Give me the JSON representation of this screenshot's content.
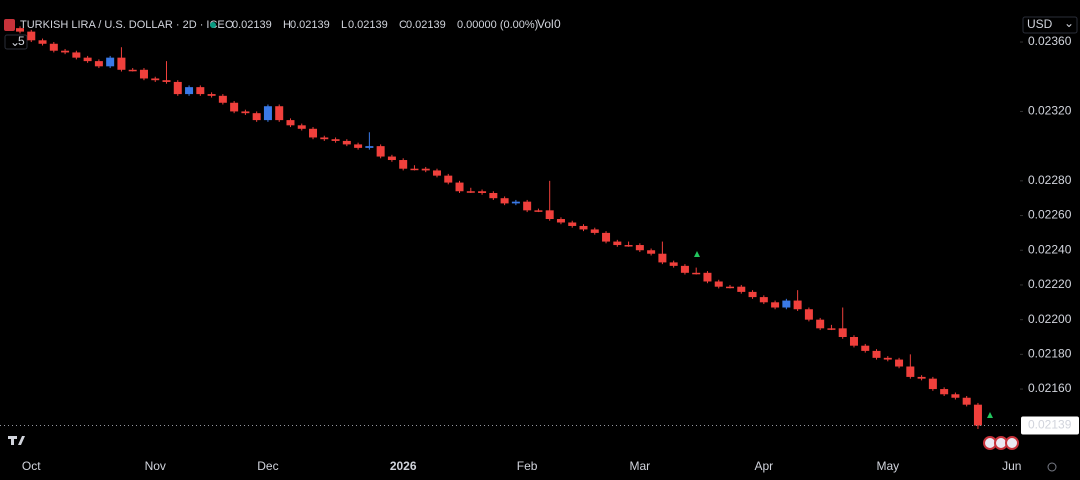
{
  "chart_data": {
    "type": "candlestick",
    "title": "TURKISH LIRA / U.S. DOLLAR · 2D · ICE",
    "interval_badge": "5",
    "currency": "USD",
    "ohlc_legend": {
      "labels": [
        "O",
        "H",
        "L",
        "C"
      ],
      "values": [
        0.02139,
        0.02139,
        0.02139,
        0.02139
      ],
      "change": "0.00000 (0.00%)",
      "volume_label": "Vol",
      "volume": 0
    },
    "last_price": 0.02139,
    "up_color": "#3a7ae8",
    "down_color": "#f0403c",
    "categories": [
      null,
      "Oct",
      null,
      null,
      null,
      null,
      null,
      null,
      null,
      null,
      null,
      null,
      "Nov",
      null,
      null,
      null,
      null,
      null,
      null,
      null,
      null,
      null,
      "Dec",
      null,
      null,
      null,
      null,
      null,
      null,
      null,
      null,
      null,
      null,
      null,
      "2026",
      null,
      null,
      null,
      null,
      null,
      null,
      null,
      null,
      null,
      null,
      "Feb",
      null,
      null,
      null,
      null,
      null,
      null,
      null,
      null,
      null,
      "Mar",
      null,
      null,
      null,
      null,
      null,
      null,
      null,
      null,
      null,
      null,
      "Apr",
      null,
      null,
      null,
      null,
      null,
      null,
      null,
      null,
      null,
      null,
      "May",
      null,
      null,
      null,
      null,
      null,
      null,
      null,
      null,
      null,
      null,
      "Jun"
    ],
    "open": [
      0.02368,
      0.02366,
      0.02361,
      0.02359,
      0.02355,
      0.02354,
      0.02351,
      0.02349,
      0.02346,
      0.02351,
      0.02344,
      0.02344,
      0.02339,
      0.02338,
      0.02337,
      0.0233,
      0.02334,
      0.0233,
      0.02329,
      0.02325,
      0.0232,
      0.02319,
      0.02315,
      0.02323,
      0.02315,
      0.02312,
      0.0231,
      0.02305,
      0.02304,
      0.02303,
      0.02301,
      0.02299,
      0.023,
      0.02294,
      0.02292,
      0.02287,
      0.02287,
      0.02286,
      0.02283,
      0.02279,
      0.02274,
      0.02274,
      0.02273,
      0.0227,
      0.02267,
      0.02268,
      0.02263,
      0.02263,
      0.02258,
      0.02256,
      0.02254,
      0.02252,
      0.0225,
      0.02245,
      0.02243,
      0.02243,
      0.0224,
      0.02238,
      0.02233,
      0.02231,
      0.02227,
      0.02227,
      0.02222,
      0.02219,
      0.02219,
      0.02216,
      0.02213,
      0.0221,
      0.02207,
      0.02211,
      0.02206,
      0.022,
      0.02195,
      0.02195,
      0.0219,
      0.02185,
      0.02182,
      0.02178,
      0.02177,
      0.02173,
      0.02167,
      0.02166,
      0.0216,
      0.02157,
      0.02155,
      0.02151,
      null,
      null,
      null
    ],
    "high": [
      0.02369,
      0.02367,
      0.02362,
      0.0236,
      0.02356,
      0.02355,
      0.02352,
      0.0235,
      0.02352,
      0.02357,
      0.02345,
      0.02345,
      0.0234,
      0.02349,
      0.02338,
      0.02335,
      0.02335,
      0.02331,
      0.0233,
      0.02326,
      0.02321,
      0.0232,
      0.02324,
      0.02324,
      0.02316,
      0.02313,
      0.02311,
      0.02306,
      0.02305,
      0.02304,
      0.02302,
      0.02308,
      0.02301,
      0.02295,
      0.02293,
      0.02289,
      0.02288,
      0.02287,
      0.02284,
      0.0228,
      0.02276,
      0.02275,
      0.02274,
      0.02271,
      0.02269,
      0.02269,
      0.02264,
      0.0228,
      0.02259,
      0.02257,
      0.02255,
      0.02253,
      0.02251,
      0.02246,
      0.02245,
      0.02244,
      0.02241,
      0.02245,
      0.02234,
      0.02232,
      0.0223,
      0.02228,
      0.02223,
      0.0222,
      0.0222,
      0.02217,
      0.02214,
      0.02211,
      0.02212,
      0.02217,
      0.02207,
      0.02201,
      0.02197,
      0.02207,
      0.02191,
      0.02186,
      0.02183,
      0.02179,
      0.02178,
      0.0218,
      0.02168,
      0.02167,
      0.02161,
      0.02158,
      0.02156,
      0.02152,
      null,
      null,
      null
    ],
    "low": [
      0.02365,
      0.0236,
      0.02358,
      0.02354,
      0.02353,
      0.0235,
      0.02348,
      0.02345,
      0.02345,
      0.02343,
      0.02343,
      0.02338,
      0.02337,
      0.02336,
      0.02329,
      0.02329,
      0.02329,
      0.02328,
      0.02324,
      0.02319,
      0.02318,
      0.02314,
      0.02314,
      0.02314,
      0.02311,
      0.02309,
      0.02304,
      0.02303,
      0.02302,
      0.023,
      0.02298,
      0.02298,
      0.02293,
      0.02291,
      0.02286,
      0.02286,
      0.02285,
      0.02282,
      0.02278,
      0.02273,
      0.02273,
      0.02272,
      0.02269,
      0.02266,
      0.02266,
      0.02262,
      0.02262,
      0.02257,
      0.02255,
      0.02253,
      0.02251,
      0.02249,
      0.02244,
      0.02242,
      0.02242,
      0.02239,
      0.02237,
      0.02232,
      0.0223,
      0.02226,
      0.02226,
      0.02221,
      0.02218,
      0.02218,
      0.02215,
      0.02212,
      0.02209,
      0.02206,
      0.02206,
      0.02205,
      0.02199,
      0.02194,
      0.02194,
      0.02189,
      0.02184,
      0.02181,
      0.02177,
      0.02176,
      0.02172,
      0.02166,
      0.02165,
      0.02159,
      0.02156,
      0.02154,
      0.0215,
      0.02137,
      null,
      null,
      null
    ],
    "close": [
      0.02366,
      0.02361,
      0.02359,
      0.02355,
      0.02354,
      0.02351,
      0.02349,
      0.02346,
      0.02351,
      0.02344,
      0.02344,
      0.02339,
      0.02338,
      0.02337,
      0.0233,
      0.02334,
      0.0233,
      0.02329,
      0.02325,
      0.0232,
      0.02319,
      0.02315,
      0.02323,
      0.02315,
      0.02312,
      0.0231,
      0.02305,
      0.02304,
      0.02303,
      0.02301,
      0.02299,
      0.023,
      0.02294,
      0.02292,
      0.02287,
      0.02287,
      0.02286,
      0.02283,
      0.02279,
      0.02274,
      0.02274,
      0.02273,
      0.0227,
      0.02267,
      0.02268,
      0.02263,
      0.02263,
      0.02258,
      0.02256,
      0.02254,
      0.02252,
      0.0225,
      0.02245,
      0.02243,
      0.02243,
      0.0224,
      0.02238,
      0.02233,
      0.02231,
      0.02227,
      0.02227,
      0.02222,
      0.02219,
      0.02219,
      0.02216,
      0.02213,
      0.0221,
      0.02207,
      0.02211,
      0.02206,
      0.022,
      0.02195,
      0.02195,
      0.0219,
      0.02185,
      0.02182,
      0.02178,
      0.02177,
      0.02173,
      0.02167,
      0.02166,
      0.0216,
      0.02157,
      0.02155,
      0.02151,
      0.02139,
      null,
      null,
      null
    ],
    "ylim": [
      0.02122,
      0.02375
    ],
    "yticks": [
      {
        "value": 0.0236,
        "label": "0.02360"
      },
      {
        "value": 0.0232,
        "label": "0.02320"
      },
      {
        "value": 0.0228,
        "label": "0.02280"
      },
      {
        "value": 0.0226,
        "label": "0.02260"
      },
      {
        "value": 0.0224,
        "label": "0.02240"
      },
      {
        "value": 0.0222,
        "label": "0.02220"
      },
      {
        "value": 0.022,
        "label": "0.02200"
      },
      {
        "value": 0.0218,
        "label": "0.02180"
      },
      {
        "value": 0.0216,
        "label": "0.02160"
      }
    ],
    "grid": false
  }
}
